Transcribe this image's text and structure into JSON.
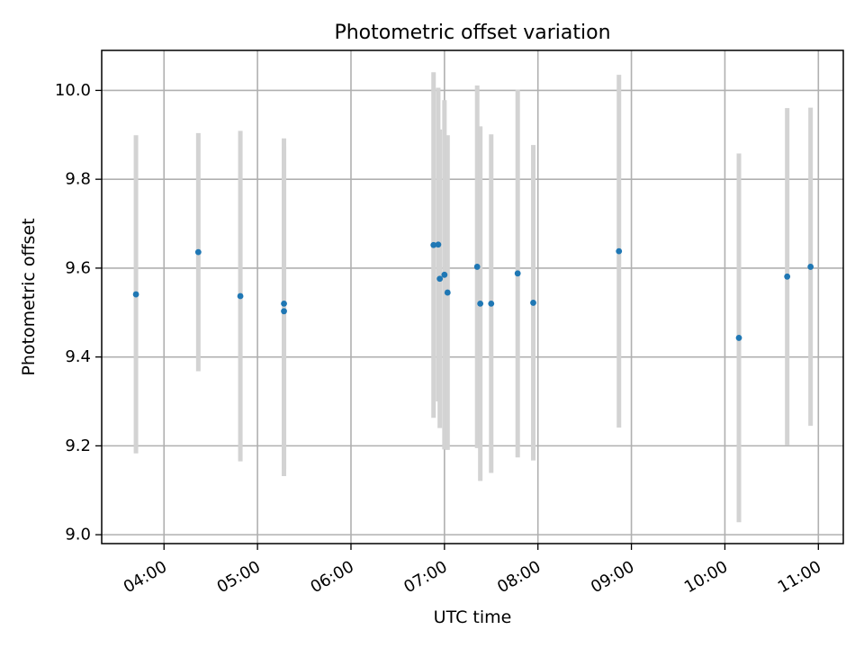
{
  "chart_data": {
    "type": "scatter",
    "title": "Photometric offset variation",
    "xlabel": "UTC time",
    "ylabel": "Photometric offset",
    "x_ticks": [
      "04:00",
      "05:00",
      "06:00",
      "07:00",
      "08:00",
      "09:00",
      "10:00",
      "11:00"
    ],
    "y_ticks": [
      "9.0",
      "9.2",
      "9.4",
      "9.6",
      "9.8",
      "10.0"
    ],
    "xlim": [
      "03:20",
      "11:16"
    ],
    "ylim": [
      8.98,
      10.09
    ],
    "grid": true,
    "marker_color": "#1f77b4",
    "errorbar_color": "#d3d3d3",
    "grid_color": "#b0b0b0",
    "points": [
      {
        "x": "03:42",
        "y": 9.541,
        "err": 0.358
      },
      {
        "x": "04:22",
        "y": 9.636,
        "err": 0.268
      },
      {
        "x": "04:49",
        "y": 9.537,
        "err": 0.372
      },
      {
        "x": "05:17",
        "y": 9.52,
        "err": 0.372
      },
      {
        "x": "05:17",
        "y": 9.503,
        "err": 0.371
      },
      {
        "x": "06:53",
        "y": 9.652,
        "err": 0.389
      },
      {
        "x": "06:56",
        "y": 9.653,
        "err": 0.353
      },
      {
        "x": "06:57",
        "y": 9.576,
        "err": 0.336
      },
      {
        "x": "07:00",
        "y": 9.585,
        "err": 0.393
      },
      {
        "x": "07:02",
        "y": 9.545,
        "err": 0.354
      },
      {
        "x": "07:21",
        "y": 9.603,
        "err": 0.408
      },
      {
        "x": "07:23",
        "y": 9.52,
        "err": 0.399
      },
      {
        "x": "07:30",
        "y": 9.52,
        "err": 0.381
      },
      {
        "x": "07:47",
        "y": 9.588,
        "err": 0.414
      },
      {
        "x": "07:57",
        "y": 9.522,
        "err": 0.355
      },
      {
        "x": "08:52",
        "y": 9.638,
        "err": 0.397
      },
      {
        "x": "10:09",
        "y": 9.443,
        "err": 0.415
      },
      {
        "x": "10:40",
        "y": 9.581,
        "err": 0.379
      },
      {
        "x": "10:55",
        "y": 9.603,
        "err": 0.358
      }
    ]
  }
}
